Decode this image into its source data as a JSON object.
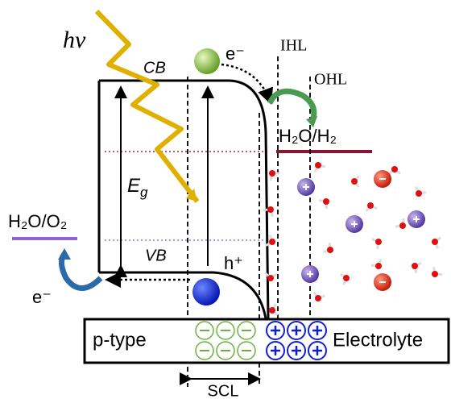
{
  "diagram": {
    "photon": "hν",
    "cb": "CB",
    "vb": "VB",
    "electron_top": "e⁻",
    "electron_left": "e⁻",
    "hole": "h⁺",
    "band_gap": {
      "symbol": "E",
      "subscript": "g"
    },
    "ihl": "IHL",
    "ohl": "OHL",
    "redox_h2": "H₂O/H₂",
    "redox_o2": "H₂O/O₂",
    "p_type": "p-type",
    "electrolyte": "Electrolyte",
    "scl": "SCL"
  }
}
